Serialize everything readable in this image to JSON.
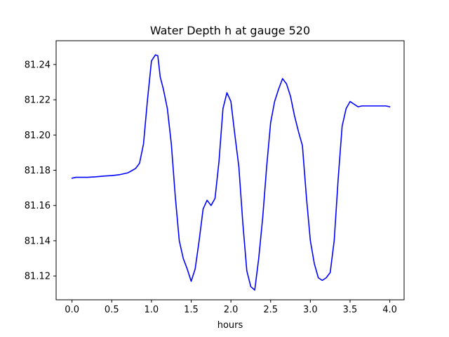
{
  "chart_data": {
    "type": "line",
    "title": "Water Depth h at gauge 520",
    "xlabel": "hours",
    "ylabel": "",
    "xlim": [
      -0.2,
      4.18
    ],
    "ylim": [
      81.1065,
      81.2535
    ],
    "xticks": [
      0.0,
      0.5,
      1.0,
      1.5,
      2.0,
      2.5,
      3.0,
      3.5,
      4.0
    ],
    "xtick_labels": [
      "0.0",
      "0.5",
      "1.0",
      "1.5",
      "2.0",
      "2.5",
      "3.0",
      "3.5",
      "4.0"
    ],
    "yticks": [
      81.12,
      81.14,
      81.16,
      81.18,
      81.2,
      81.22,
      81.24
    ],
    "ytick_labels": [
      "81.12",
      "81.14",
      "81.16",
      "81.18",
      "81.20",
      "81.22",
      "81.24"
    ],
    "grid": false,
    "series": [
      {
        "color": "#0000ff",
        "x": [
          0.0,
          0.05,
          0.1,
          0.2,
          0.3,
          0.4,
          0.5,
          0.6,
          0.7,
          0.75,
          0.8,
          0.85,
          0.9,
          0.95,
          1.0,
          1.05,
          1.08,
          1.11,
          1.15,
          1.2,
          1.25,
          1.3,
          1.35,
          1.4,
          1.45,
          1.5,
          1.55,
          1.6,
          1.65,
          1.7,
          1.75,
          1.8,
          1.85,
          1.9,
          1.95,
          2.0,
          2.05,
          2.1,
          2.15,
          2.2,
          2.25,
          2.3,
          2.35,
          2.4,
          2.45,
          2.5,
          2.55,
          2.6,
          2.65,
          2.7,
          2.75,
          2.8,
          2.85,
          2.9,
          2.95,
          3.0,
          3.05,
          3.1,
          3.15,
          3.2,
          3.25,
          3.3,
          3.35,
          3.4,
          3.45,
          3.5,
          3.55,
          3.6,
          3.65,
          3.7,
          3.75,
          3.8,
          3.85,
          3.9,
          3.95,
          4.0
        ],
        "y": [
          81.1755,
          81.176,
          81.176,
          81.176,
          81.1763,
          81.1767,
          81.177,
          81.1775,
          81.1785,
          81.1797,
          81.181,
          81.184,
          81.195,
          81.22,
          81.242,
          81.2455,
          81.245,
          81.233,
          81.226,
          81.215,
          81.195,
          81.165,
          81.14,
          81.13,
          81.124,
          81.117,
          81.124,
          81.14,
          81.158,
          81.163,
          81.16,
          81.164,
          81.185,
          81.215,
          81.224,
          81.219,
          81.2,
          81.182,
          81.15,
          81.123,
          81.114,
          81.112,
          81.13,
          81.153,
          81.182,
          81.207,
          81.219,
          81.226,
          81.232,
          81.229,
          81.222,
          81.211,
          81.202,
          81.194,
          81.165,
          81.14,
          81.127,
          81.119,
          81.1175,
          81.119,
          81.122,
          81.14,
          81.175,
          81.205,
          81.215,
          81.219,
          81.2175,
          81.216,
          81.2165,
          81.2165,
          81.2165,
          81.2165,
          81.2165,
          81.2165,
          81.2165,
          81.216
        ]
      }
    ]
  }
}
